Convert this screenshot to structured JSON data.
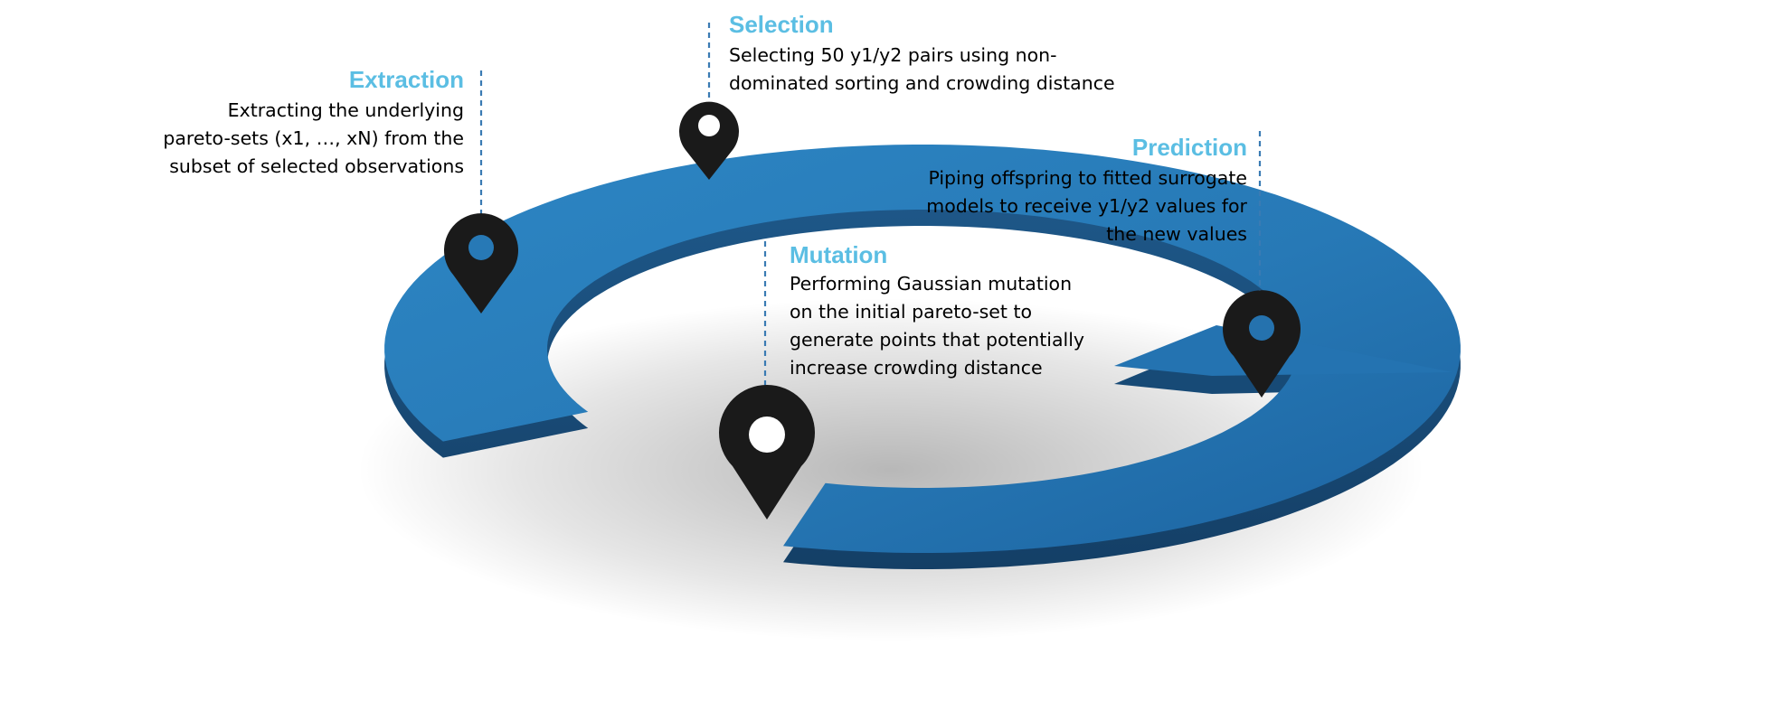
{
  "colors": {
    "title": "#5BBEE3",
    "text": "#000000",
    "arrow_top": "#2A7FBD",
    "arrow_side": "#1B4F7D",
    "pin": "#1A1A1A",
    "leader": "#3A7BB3"
  },
  "stages": [
    {
      "key": "extraction",
      "title": "Extraction",
      "description": [
        "Extracting the underlying",
        "pareto-sets (x1, …, xN) from the",
        "subset of selected observations"
      ],
      "icon": "map-pin-icon"
    },
    {
      "key": "selection",
      "title": "Selection",
      "description": [
        "Selecting 50 y1/y2 pairs using non-",
        "dominated sorting and crowding distance"
      ],
      "icon": "map-pin-icon"
    },
    {
      "key": "prediction",
      "title": "Prediction",
      "description": [
        "Piping offspring to fitted surrogate",
        "models to receive y1/y2 values for",
        "the new values"
      ],
      "icon": "map-pin-icon"
    },
    {
      "key": "mutation",
      "title": "Mutation",
      "description": [
        "Performing Gaussian mutation",
        "on the initial pareto-set to",
        "generate points that potentially",
        "increase crowding distance"
      ],
      "icon": "map-pin-icon"
    }
  ]
}
